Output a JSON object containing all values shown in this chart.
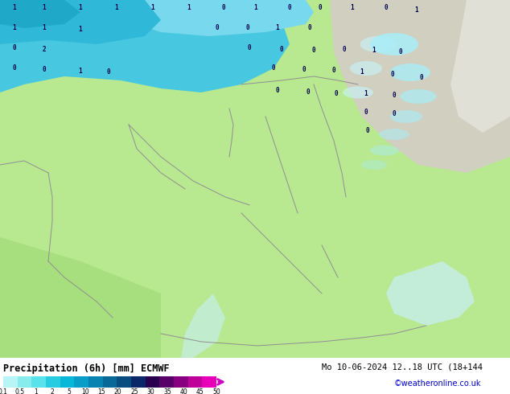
{
  "title": "Precipitation (6h) [mm] ECMWF",
  "date_text": "Mo 10-06-2024 12..18 UTC (18+144",
  "credit": "©weatheronline.co.uk",
  "colorbar_tick_labels": [
    "0.1",
    "0.5",
    "1",
    "2",
    "5",
    "10",
    "15",
    "20",
    "25",
    "30",
    "35",
    "40",
    "45",
    "50"
  ],
  "colorbar_colors": [
    "#b8f5f5",
    "#88ecec",
    "#58e2ea",
    "#28cce0",
    "#08b8d8",
    "#089ec8",
    "#0882b0",
    "#086898",
    "#084c80",
    "#0a2868",
    "#280050",
    "#560068",
    "#880080",
    "#c0009a",
    "#e800b8"
  ],
  "land_green": "#b8e890",
  "land_green_dark": "#98d870",
  "sea_light_blue": "#c8f0f8",
  "precip_blue_dark": "#48c8e0",
  "precip_blue_mid": "#78d8ee",
  "precip_blue_light": "#a8eef8",
  "precip_blue_vlight": "#c8f4fc",
  "land_gray": "#d0cfc0",
  "land_white": "#e8e8e0",
  "border_color": "#909090",
  "text_color_dark": "#000050",
  "background_color": "#ffffff"
}
